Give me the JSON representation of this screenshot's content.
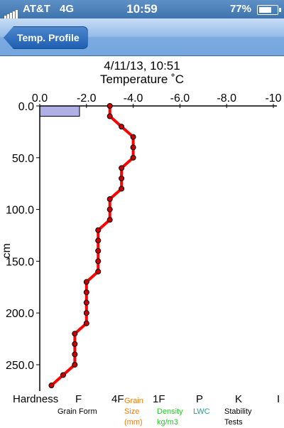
{
  "status_bar": {
    "carrier": "AT&T",
    "network": "4G",
    "time": "10:59",
    "battery_percent": "77%",
    "battery_level": 0.77
  },
  "nav": {
    "back_label": "Temp. Profile"
  },
  "header": {
    "datetime": "4/11/13, 10:51",
    "axis_title": "Temperature ˚C"
  },
  "chart_data": {
    "type": "line",
    "xlabel": "Temperature ˚C",
    "ylabel": "cm",
    "x_ticks": [
      "0.0",
      "-2.0",
      "-4.0",
      "-6.0",
      "-8.0",
      "-10"
    ],
    "y_ticks": [
      "0.0",
      "50.0",
      "100.0",
      "150.0",
      "200.0",
      "250.0"
    ],
    "xlim": [
      0,
      -10
    ],
    "ylim": [
      0,
      272
    ],
    "series": [
      {
        "color": "#ff0000",
        "points": [
          {
            "depth": 0,
            "temp": -3.0
          },
          {
            "depth": 10,
            "temp": -3.0
          },
          {
            "depth": 20,
            "temp": -3.5
          },
          {
            "depth": 30,
            "temp": -4.0
          },
          {
            "depth": 40,
            "temp": -4.0
          },
          {
            "depth": 50,
            "temp": -4.0
          },
          {
            "depth": 60,
            "temp": -3.5
          },
          {
            "depth": 70,
            "temp": -3.5
          },
          {
            "depth": 80,
            "temp": -3.5
          },
          {
            "depth": 90,
            "temp": -3.0
          },
          {
            "depth": 100,
            "temp": -3.0
          },
          {
            "depth": 110,
            "temp": -3.0
          },
          {
            "depth": 120,
            "temp": -2.5
          },
          {
            "depth": 130,
            "temp": -2.5
          },
          {
            "depth": 140,
            "temp": -2.5
          },
          {
            "depth": 150,
            "temp": -2.5
          },
          {
            "depth": 160,
            "temp": -2.5
          },
          {
            "depth": 170,
            "temp": -2.0
          },
          {
            "depth": 180,
            "temp": -2.0
          },
          {
            "depth": 190,
            "temp": -2.0
          },
          {
            "depth": 200,
            "temp": -2.0
          },
          {
            "depth": 210,
            "temp": -2.0
          },
          {
            "depth": 220,
            "temp": -1.5
          },
          {
            "depth": 230,
            "temp": -1.5
          },
          {
            "depth": 240,
            "temp": -1.5
          },
          {
            "depth": 250,
            "temp": -1.5
          },
          {
            "depth": 260,
            "temp": -1.0
          },
          {
            "depth": 270,
            "temp": -0.5
          }
        ]
      }
    ],
    "hardness_layer": {
      "top": 0,
      "bottom": 10,
      "color": "#b0b0e6",
      "hardness": "F"
    }
  },
  "legend": {
    "hardness_scale": [
      "Hardness",
      "F",
      "4F",
      "1F",
      "P",
      "K",
      "I"
    ],
    "grain_form": "Grain Form",
    "grain_size": [
      "Grain",
      "Size",
      "(mm)"
    ],
    "density": [
      "Density",
      "kg/m3"
    ],
    "lwc": "LWC",
    "stability": [
      "Stability",
      "Tests"
    ],
    "colors": {
      "grain_size": "#ff7a00",
      "density": "#22cc22",
      "lwc": "#2a9d8f"
    }
  }
}
